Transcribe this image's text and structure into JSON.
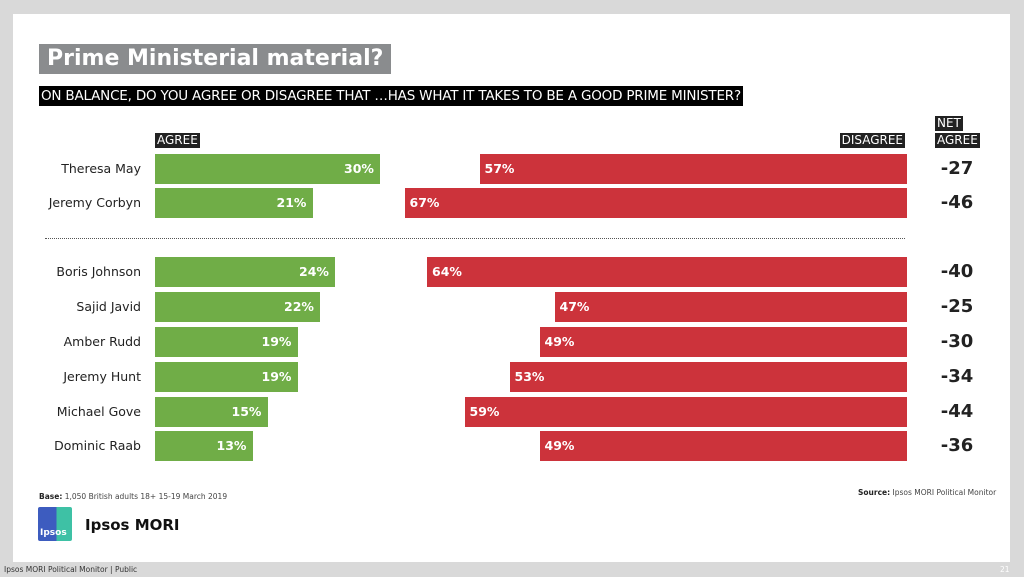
{
  "title": "Prime Ministerial material?",
  "question": "ON BALANCE, DO YOU AGREE OR DISAGREE THAT …HAS WHAT IT TAKES TO BE A GOOD PRIME MINISTER?",
  "colors": {
    "agree": "#70ad47",
    "disagree": "#cc333b"
  },
  "chart_data": {
    "type": "bar",
    "orientation": "horizontal-diverging",
    "categories": [
      "Theresa May",
      "Jeremy Corbyn",
      "Boris Johnson",
      "Sajid Javid",
      "Amber Rudd",
      "Jeremy Hunt",
      "Michael Gove",
      "Dominic Raab"
    ],
    "series": [
      {
        "name": "AGREE",
        "values": [
          30,
          21,
          24,
          22,
          19,
          19,
          15,
          13
        ],
        "labels": [
          "30%",
          "21%",
          "24%",
          "22%",
          "19%",
          "19%",
          "15%",
          "13%"
        ]
      },
      {
        "name": "DISAGREE",
        "values": [
          57,
          67,
          64,
          47,
          49,
          53,
          59,
          49
        ],
        "labels": [
          "57%",
          "67%",
          "64%",
          "47%",
          "49%",
          "53%",
          "59%",
          "49%"
        ]
      }
    ],
    "net": {
      "header": [
        "NET",
        "AGREE"
      ],
      "values": [
        "-27",
        "-46",
        "-40",
        "-25",
        "-30",
        "-34",
        "-44",
        "-36"
      ]
    }
  },
  "base": {
    "label": "Base:",
    "text": "1,050 British adults 18+ 15-19 March 2019"
  },
  "source": {
    "label": "Source:",
    "text": "Ipsos MORI Political Monitor"
  },
  "logo": {
    "badge": "Ipsos",
    "name": "Ipsos MORI"
  },
  "footer": {
    "left": "Ipsos MORI Political Monitor | Public",
    "page": "21"
  }
}
